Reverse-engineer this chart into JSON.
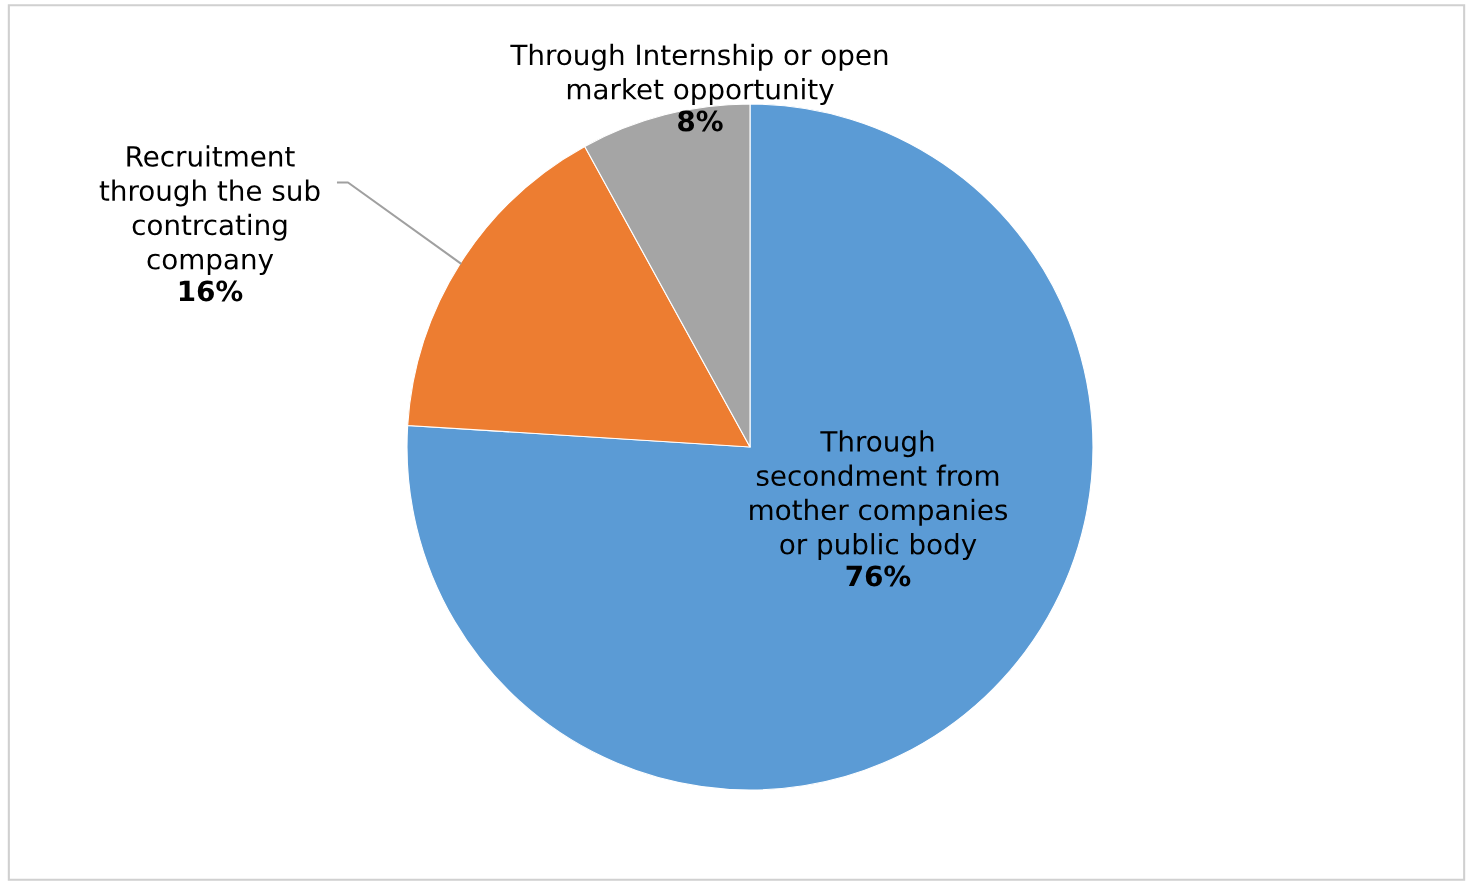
{
  "chart_data": {
    "type": "pie",
    "categories": [
      "Through secondment from mother companies or public body",
      "Recruitment through the sub contrcating company",
      "Through Internship or open market opportunity"
    ],
    "values": [
      76,
      16,
      8
    ],
    "value_labels": [
      "76%",
      "16%",
      "8%"
    ],
    "colors": [
      "#5b9bd5",
      "#ed7d31",
      "#a5a5a5"
    ],
    "legend": false
  }
}
